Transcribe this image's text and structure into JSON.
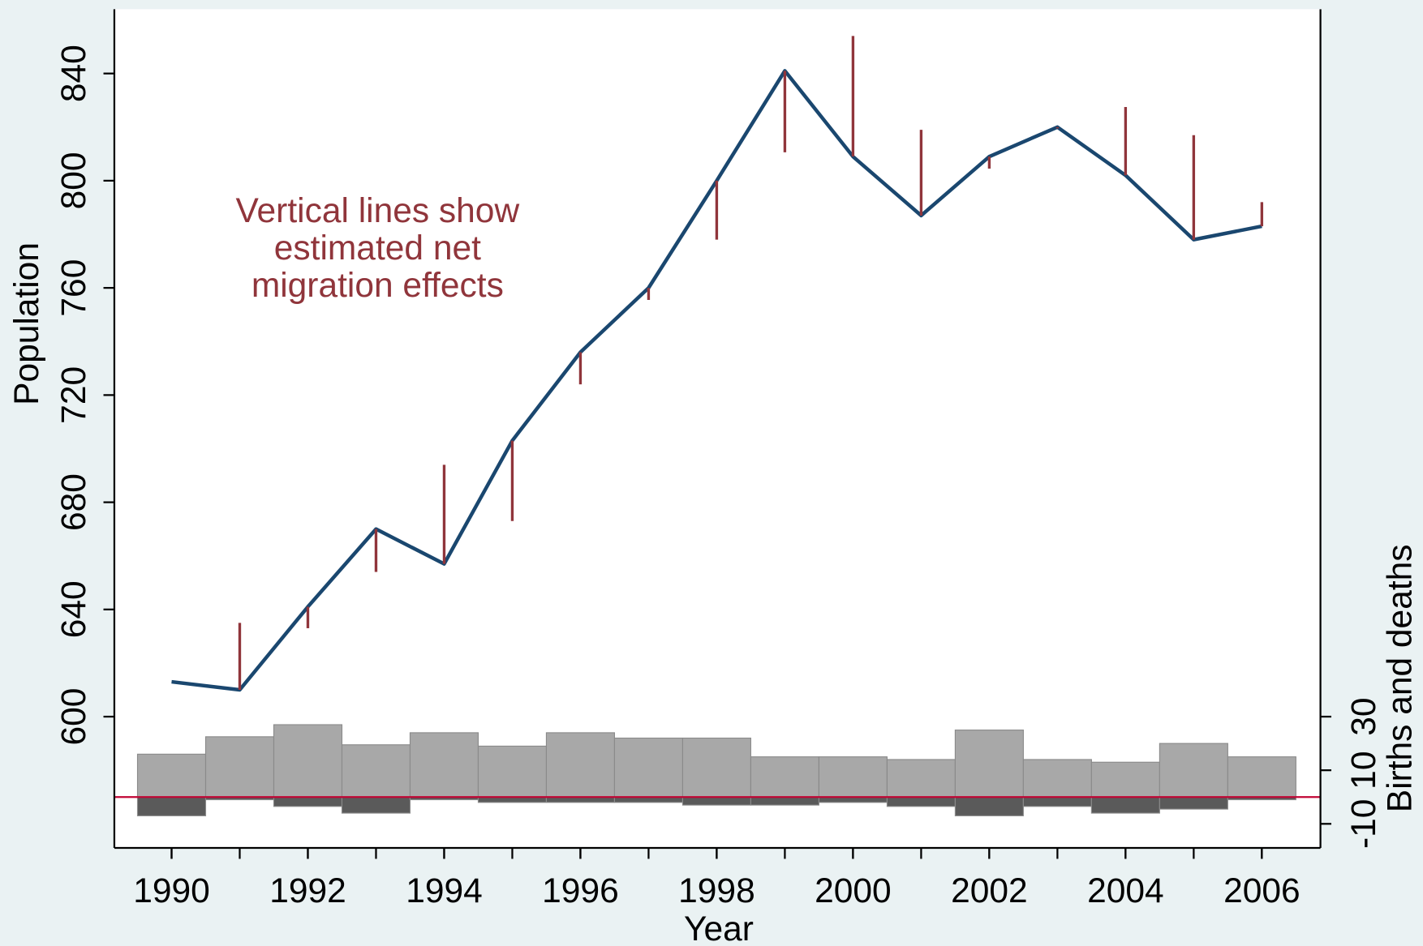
{
  "chart_data": {
    "type": "line",
    "xlabel": "Year",
    "ylabel": "Population",
    "y2label": "Births and deaths",
    "annotation": [
      "Vertical lines show",
      "estimated net",
      "migration effects"
    ],
    "annotation_color": "#90353b",
    "x": [
      1990,
      1991,
      1992,
      1993,
      1994,
      1995,
      1996,
      1997,
      1998,
      1999,
      2000,
      2001,
      2002,
      2003,
      2004,
      2005,
      2006
    ],
    "xlim": [
      1989.16,
      2006.86
    ],
    "xticks": [
      1990,
      1992,
      1994,
      1996,
      1998,
      2000,
      2002,
      2004,
      2006
    ],
    "ylim": [
      551,
      864
    ],
    "yticks": [
      600,
      640,
      680,
      720,
      760,
      800,
      840
    ],
    "y2lim": [
      -19,
      294
    ],
    "y2ticks": [
      -10,
      10,
      30
    ],
    "grid": true,
    "y2_refline": 0,
    "y2_refline_color": "#c10534",
    "series": [
      {
        "type": "line",
        "color": "#1a476f",
        "values": [
          613,
          610,
          641,
          670,
          657,
          703,
          736,
          760,
          800,
          841,
          809,
          787,
          809,
          820,
          802,
          778,
          783
        ]
      },
      {
        "type": "spike",
        "base": 0,
        "color": "#90353b",
        "values": [
          null,
          635,
          633,
          654,
          694,
          673,
          724,
          755.5,
          778,
          810.6,
          854,
          819,
          804.5,
          819.5,
          827.5,
          817,
          792
        ]
      },
      {
        "type": "bar",
        "axis": "y2",
        "color": "#a8a8a8",
        "values": [
          16,
          22.5,
          27,
          19.5,
          24,
          19,
          24,
          22,
          22,
          15,
          15,
          14,
          25,
          14,
          13,
          20,
          15
        ]
      },
      {
        "type": "bar",
        "axis": "y2",
        "color": "#5a5a5a",
        "values": [
          -7,
          -1,
          -3.5,
          -6,
          -1,
          -2,
          -2,
          -2,
          -3,
          -3,
          -2,
          -3.5,
          -7,
          -3.5,
          -6,
          -4.5,
          -1
        ]
      }
    ]
  }
}
